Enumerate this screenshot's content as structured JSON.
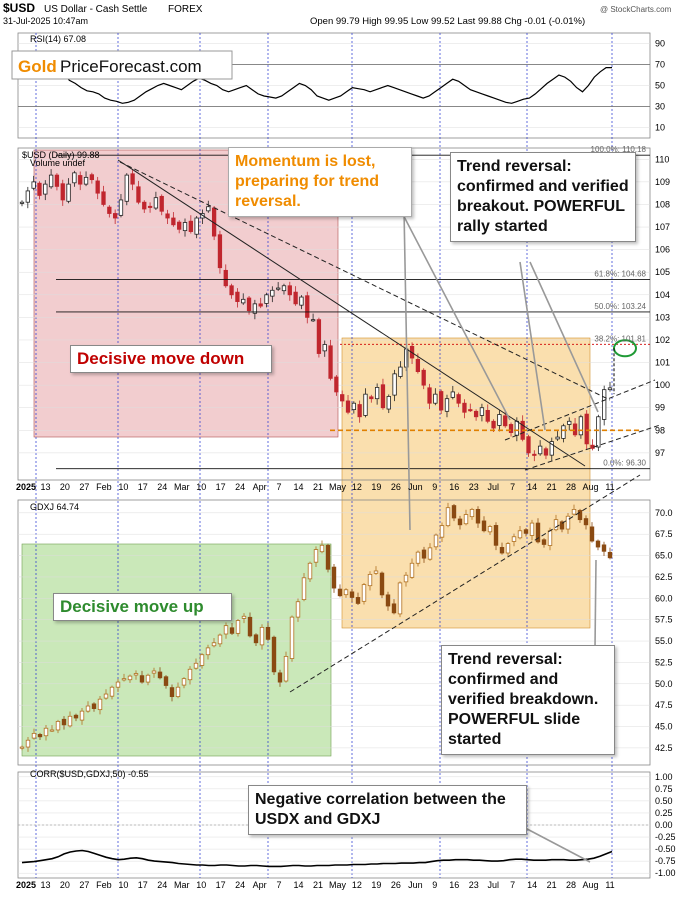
{
  "header": {
    "symbol": "$USD",
    "name": "US Dollar - Cash Settle",
    "exchange": "FOREX",
    "timestamp": "31-Jul-2025 10:47am",
    "quote": "Open 99.79   High 99.95   Low 99.52   Last 99.88   Chg -0.01 (-0.01%)",
    "brand": "@ StockCharts.com"
  },
  "logo": {
    "gold": "Gold",
    "rest": "PriceForecast.com"
  },
  "colors": {
    "red_zone": "#e8a4a8",
    "orange_zone": "#f5c46c",
    "green_zone": "#a6d88a",
    "up_candle": "#222222",
    "down_candle_usd": "#c0262e",
    "gdxj_up": "#b07020",
    "gdxj_down": "#8a4a12",
    "callout_orange": "#f08c00",
    "callout_red": "#c00000",
    "callout_green": "#2e8b2e",
    "fib_orange": "#e08000",
    "fib_red": "#d00000",
    "target_ring": "#1f9a35"
  },
  "chart_data": [
    {
      "type": "line",
      "panel": "rsi",
      "label": "RSI(14) 67.08",
      "ylim": [
        0,
        100
      ],
      "yticks": [
        10,
        30,
        50,
        70,
        90
      ],
      "hlines": [
        30,
        70
      ],
      "values": [
        58,
        62,
        60,
        64,
        66,
        67,
        62,
        55,
        52,
        48,
        45,
        44,
        42,
        38,
        36,
        35,
        33,
        34,
        36,
        40,
        44,
        47,
        50,
        52,
        50,
        48,
        46,
        50,
        54,
        57,
        55,
        52,
        50,
        46,
        44,
        46,
        48,
        50,
        46,
        42,
        40,
        39,
        38,
        40,
        44,
        48,
        52,
        50,
        46,
        40,
        38,
        36,
        38,
        40,
        44,
        48,
        47,
        46,
        44,
        46,
        48,
        50,
        48,
        46,
        44,
        42,
        40,
        38,
        40,
        44,
        48,
        52,
        56,
        54,
        50,
        46,
        44,
        42,
        40,
        38,
        36,
        34,
        33,
        35,
        37,
        38,
        42,
        47,
        52,
        56,
        60,
        58,
        54,
        48,
        44,
        50,
        58,
        63,
        67,
        67.08
      ]
    },
    {
      "type": "candlestick",
      "panel": "usd",
      "label": "$USD (Daily) 99.88",
      "sublabel": "Volume undef",
      "ylim": [
        95.8,
        110.5
      ],
      "yticks": [
        97,
        98,
        99,
        100,
        101,
        102,
        103,
        104,
        105,
        106,
        107,
        108,
        109,
        110
      ],
      "x_labels": [
        "2025",
        "13",
        "20",
        "27",
        "Feb",
        "10",
        "17",
        "24",
        "Mar",
        "10",
        "17",
        "24",
        "Apr",
        "7",
        "14",
        "21",
        "May",
        "12",
        "19",
        "26",
        "Jun",
        "9",
        "16",
        "23",
        "Jul",
        "7",
        "14",
        "21",
        "28",
        "Aug",
        "11"
      ],
      "closes": [
        108.1,
        108.6,
        109.0,
        108.4,
        108.9,
        109.3,
        108.8,
        108.2,
        108.9,
        109.4,
        108.9,
        109.2,
        109.1,
        108.5,
        108.0,
        107.6,
        107.4,
        108.2,
        109.3,
        108.9,
        108.1,
        107.8,
        107.9,
        108.3,
        107.7,
        107.4,
        107.1,
        106.9,
        107.2,
        106.8,
        107.4,
        107.6,
        107.9,
        106.6,
        105.2,
        104.4,
        104.0,
        103.7,
        103.8,
        103.3,
        103.6,
        103.5,
        104.0,
        104.2,
        104.3,
        104.4,
        104.0,
        103.6,
        103.9,
        103.0,
        102.9,
        101.4,
        101.8,
        100.3,
        99.7,
        99.3,
        98.8,
        99.2,
        98.6,
        99.6,
        99.4,
        99.9,
        99.0,
        99.5,
        100.5,
        100.8,
        101.6,
        101.2,
        100.6,
        100.0,
        99.2,
        99.6,
        98.9,
        99.4,
        99.7,
        99.2,
        98.8,
        98.9,
        98.6,
        99.0,
        98.4,
        98.1,
        98.7,
        98.2,
        97.9,
        98.4,
        97.6,
        97.0,
        96.9,
        97.3,
        96.9,
        97.5,
        97.7,
        98.2,
        98.4,
        97.8,
        98.6,
        97.4,
        97.2,
        98.6,
        99.8,
        99.88
      ],
      "fib_levels": [
        {
          "label": "100.0%: 110.18",
          "value": 110.18
        },
        {
          "label": "61.8%: 104.68",
          "value": 104.68
        },
        {
          "label": "50.0%: 103.24",
          "value": 103.24
        },
        {
          "label": "38.2%: 101.81",
          "value": 101.81
        },
        {
          "label": "0.0%: 96.30",
          "value": 96.3
        }
      ],
      "support_level": 98.0,
      "target": 101.81
    },
    {
      "type": "candlestick",
      "panel": "gdxj",
      "label": "GDXJ 64.74",
      "ylim": [
        40.5,
        71.5
      ],
      "yticks": [
        42.5,
        45.0,
        47.5,
        50.0,
        52.5,
        55.0,
        57.5,
        60.0,
        62.5,
        65.0,
        67.5,
        70.0
      ],
      "closes": [
        42.6,
        43.4,
        44.2,
        43.8,
        44.8,
        44.6,
        45.6,
        45.2,
        46.2,
        46.0,
        46.8,
        47.4,
        47.1,
        48.2,
        48.8,
        49.6,
        50.2,
        50.6,
        50.9,
        51.2,
        50.2,
        51.0,
        51.5,
        50.7,
        49.8,
        48.5,
        49.6,
        50.6,
        51.7,
        52.4,
        53.4,
        54.2,
        54.8,
        55.7,
        56.8,
        55.9,
        57.4,
        57.9,
        55.6,
        54.8,
        56.6,
        55.2,
        51.4,
        50.2,
        53.2,
        57.8,
        59.6,
        62.4,
        64.1,
        65.7,
        66.2,
        63.4,
        61.2,
        60.3,
        61.0,
        60.1,
        59.4,
        61.6,
        62.8,
        63.2,
        60.4,
        59.1,
        58.3,
        61.8,
        62.7,
        64.1,
        65.4,
        64.7,
        65.9,
        67.4,
        68.5,
        70.6,
        69.4,
        68.6,
        69.8,
        70.4,
        68.8,
        67.9,
        68.4,
        66.2,
        65.3,
        66.4,
        67.2,
        67.9,
        67.6,
        68.8,
        66.6,
        66.3,
        67.9,
        69.2,
        68.1,
        69.6,
        70.4,
        69.2,
        68.6,
        66.7,
        66.0,
        65.5,
        64.74
      ]
    },
    {
      "type": "line",
      "panel": "corr",
      "label": "CORR($USD,GDXJ,50) -0.55",
      "ylim": [
        -1.1,
        1.1
      ],
      "yticks": [
        1.0,
        0.75,
        0.5,
        0.25,
        0.0,
        -0.25,
        -0.5,
        -0.75,
        -1.0
      ],
      "values": [
        -0.78,
        -0.77,
        -0.76,
        -0.74,
        -0.72,
        -0.7,
        -0.66,
        -0.6,
        -0.56,
        -0.54,
        -0.53,
        -0.55,
        -0.59,
        -0.63,
        -0.67,
        -0.7,
        -0.72,
        -0.71,
        -0.69,
        -0.68,
        -0.7,
        -0.73,
        -0.75,
        -0.76,
        -0.77,
        -0.78,
        -0.8,
        -0.81,
        -0.82,
        -0.83,
        -0.83,
        -0.84,
        -0.84,
        -0.83,
        -0.83,
        -0.84,
        -0.85,
        -0.85,
        -0.84,
        -0.84,
        -0.85,
        -0.86,
        -0.86,
        -0.86,
        -0.85,
        -0.84,
        -0.84,
        -0.85,
        -0.85,
        -0.84,
        -0.84,
        -0.84,
        -0.83,
        -0.83,
        -0.83,
        -0.82,
        -0.82,
        -0.82,
        -0.81,
        -0.81,
        -0.8,
        -0.8,
        -0.8,
        -0.79,
        -0.79,
        -0.79,
        -0.78,
        -0.78,
        -0.76,
        -0.74,
        -0.73,
        -0.73,
        -0.72,
        -0.72,
        -0.72,
        -0.73,
        -0.73,
        -0.74,
        -0.75,
        -0.75,
        -0.74,
        -0.72,
        -0.71,
        -0.71,
        -0.72,
        -0.73,
        -0.73,
        -0.73,
        -0.72,
        -0.72,
        -0.72,
        -0.73,
        -0.73,
        -0.72,
        -0.71,
        -0.69,
        -0.65,
        -0.6,
        -0.55
      ]
    }
  ],
  "callouts": {
    "momentum": "Momentum is lost, preparing for trend reversal.",
    "trend_rev_up": "Trend reversal: confirmed and verified breakout. POWERFUL rally started",
    "decisive_down": "Decisive move down",
    "decisive_up": "Decisive move up",
    "trend_rev_down": "Trend reversal: confirmed and verified breakdown. POWERFUL slide started",
    "negative_corr": "Negative correlation between the USDX and GDXJ"
  }
}
